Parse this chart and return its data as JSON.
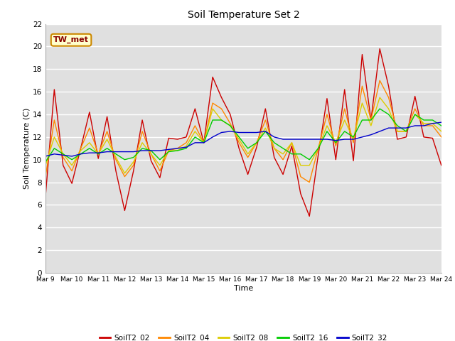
{
  "title": "Soil Temperature Set 2",
  "xlabel": "Time",
  "ylabel": "Soil Temperature (C)",
  "ylim": [
    0,
    22
  ],
  "xtick_labels": [
    "Mar 9",
    "Mar 10",
    "Mar 11",
    "Mar 12",
    "Mar 13",
    "Mar 14",
    "Mar 15",
    "Mar 16",
    "Mar 17",
    "Mar 18",
    "Mar 19",
    "Mar 20",
    "Mar 21",
    "Mar 22",
    "Mar 23",
    "Mar 24"
  ],
  "annotation": "TW_met",
  "fig_bg_color": "#ffffff",
  "plot_bg_color": "#e0e0e0",
  "series_colors": {
    "SoilT2_02": "#cc0000",
    "SoilT2_04": "#ff8800",
    "SoilT2_08": "#ddcc00",
    "SoilT2_16": "#00cc00",
    "SoilT2_32": "#0000cc"
  },
  "SoilT2_02": [
    6.8,
    16.2,
    9.5,
    7.9,
    11.0,
    14.2,
    10.1,
    13.8,
    9.0,
    5.5,
    9.0,
    13.5,
    9.9,
    8.4,
    11.9,
    11.8,
    12.0,
    14.5,
    11.5,
    17.3,
    15.5,
    14.0,
    11.0,
    8.7,
    11.1,
    14.5,
    10.2,
    8.7,
    11.2,
    7.0,
    5.0,
    10.4,
    15.4,
    10.0,
    16.2,
    9.9,
    19.3,
    13.5,
    19.8,
    16.5,
    11.8,
    12.0,
    15.6,
    12.0,
    11.9,
    9.5
  ],
  "SoilT2_04": [
    8.5,
    13.5,
    10.2,
    9.0,
    11.0,
    12.8,
    10.5,
    12.5,
    10.0,
    8.5,
    9.5,
    12.5,
    10.5,
    9.0,
    10.8,
    11.0,
    11.5,
    13.0,
    11.5,
    15.0,
    14.5,
    13.2,
    11.5,
    10.2,
    11.5,
    13.5,
    11.0,
    10.0,
    11.5,
    8.5,
    8.0,
    11.0,
    14.0,
    11.2,
    14.5,
    11.5,
    16.5,
    13.5,
    17.0,
    15.5,
    12.5,
    12.5,
    14.5,
    13.0,
    13.0,
    12.0
  ],
  "SoilT2_08": [
    9.5,
    12.0,
    10.5,
    9.5,
    10.8,
    11.5,
    10.5,
    11.8,
    10.2,
    8.8,
    9.8,
    11.5,
    10.5,
    9.5,
    10.8,
    10.8,
    11.2,
    12.5,
    11.5,
    14.5,
    13.5,
    13.0,
    11.8,
    10.5,
    11.5,
    12.8,
    11.0,
    10.5,
    11.5,
    9.5,
    9.5,
    11.0,
    13.0,
    11.5,
    13.5,
    11.8,
    15.0,
    13.0,
    15.5,
    14.5,
    12.5,
    12.5,
    14.0,
    13.2,
    13.2,
    12.5
  ],
  "SoilT2_16": [
    9.8,
    11.0,
    10.5,
    10.0,
    10.5,
    11.0,
    10.5,
    11.0,
    10.5,
    10.0,
    10.2,
    11.0,
    10.8,
    10.0,
    10.7,
    10.8,
    11.0,
    12.0,
    11.5,
    13.5,
    13.5,
    13.0,
    12.0,
    11.0,
    11.5,
    12.5,
    11.5,
    11.0,
    10.5,
    10.5,
    10.0,
    11.0,
    12.5,
    11.5,
    12.5,
    12.0,
    13.5,
    13.5,
    14.5,
    14.0,
    13.0,
    12.5,
    14.0,
    13.5,
    13.5,
    13.0
  ],
  "SoilT2_32": [
    10.3,
    10.5,
    10.4,
    10.3,
    10.5,
    10.6,
    10.6,
    10.7,
    10.7,
    10.7,
    10.7,
    10.8,
    10.8,
    10.8,
    10.9,
    11.0,
    11.1,
    11.5,
    11.5,
    12.0,
    12.4,
    12.5,
    12.4,
    12.4,
    12.4,
    12.5,
    12.0,
    11.8,
    11.8,
    11.8,
    11.8,
    11.8,
    11.8,
    11.7,
    11.8,
    11.8,
    12.0,
    12.2,
    12.5,
    12.8,
    12.8,
    12.8,
    13.0,
    13.0,
    13.2,
    13.3
  ]
}
